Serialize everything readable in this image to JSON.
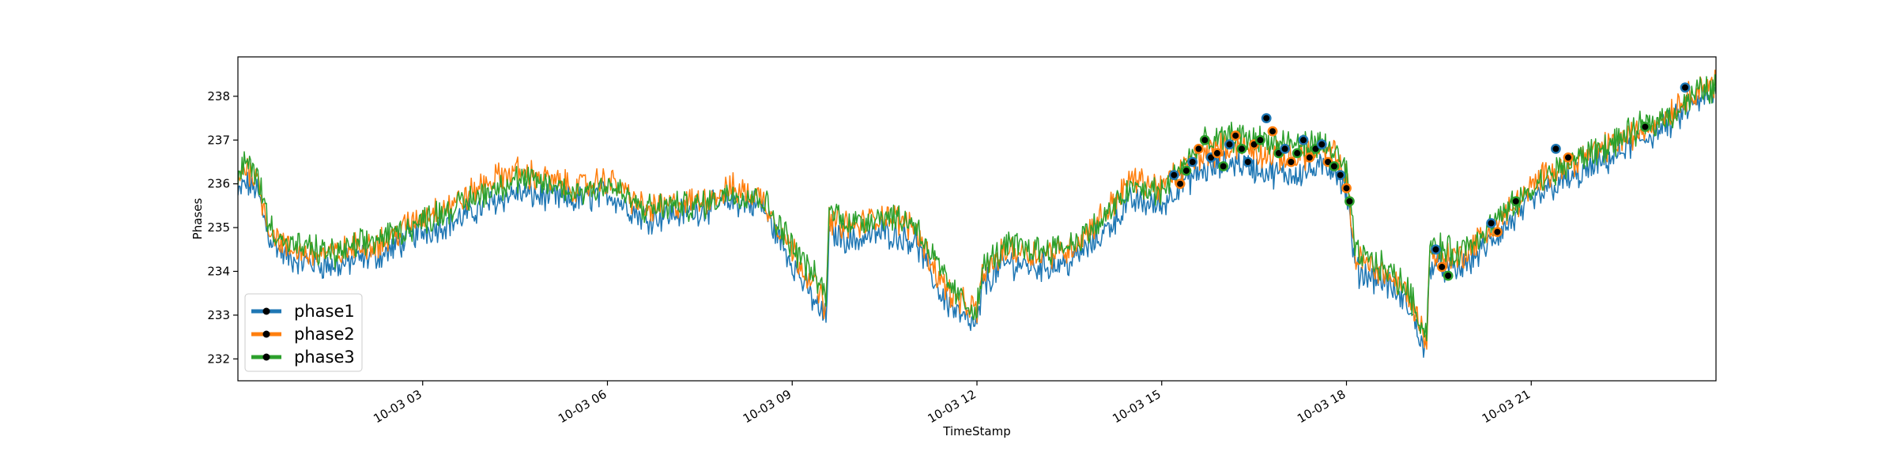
{
  "chart_data": {
    "type": "line",
    "title": "",
    "xlabel": "TimeStamp",
    "ylabel": "Phases",
    "x_range": [
      "2023-10-03 00:00",
      "2023-10-03 24:00"
    ],
    "ylim": [
      231.5,
      238.9
    ],
    "yticks": [
      232,
      233,
      234,
      235,
      236,
      237,
      238
    ],
    "xticks": [
      {
        "hour": 3,
        "label": "10-03 03"
      },
      {
        "hour": 6,
        "label": "10-03 06"
      },
      {
        "hour": 9,
        "label": "10-03 09"
      },
      {
        "hour": 12,
        "label": "10-03 12"
      },
      {
        "hour": 15,
        "label": "10-03 15"
      },
      {
        "hour": 18,
        "label": "10-03 18"
      },
      {
        "hour": 21,
        "label": "10-03 21"
      }
    ],
    "grid": false,
    "legend_position": "lower-left",
    "series": [
      {
        "name": "phase1",
        "color": "#1f77b4",
        "points": [
          [
            0,
            235.7
          ],
          [
            0.1,
            236.0
          ],
          [
            0.3,
            235.9
          ],
          [
            0.5,
            234.8
          ],
          [
            0.8,
            234.3
          ],
          [
            1.2,
            234.2
          ],
          [
            1.6,
            234.1
          ],
          [
            2.0,
            234.3
          ],
          [
            2.4,
            234.4
          ],
          [
            2.8,
            234.8
          ],
          [
            3.2,
            235.0
          ],
          [
            3.6,
            235.2
          ],
          [
            4.0,
            235.5
          ],
          [
            4.5,
            235.8
          ],
          [
            5.0,
            235.7
          ],
          [
            5.5,
            235.6
          ],
          [
            6.0,
            235.8
          ],
          [
            6.3,
            235.5
          ],
          [
            6.6,
            235.2
          ],
          [
            7.0,
            235.3
          ],
          [
            7.5,
            235.4
          ],
          [
            8.0,
            235.6
          ],
          [
            8.5,
            235.5
          ],
          [
            9.0,
            234.2
          ],
          [
            9.4,
            233.2
          ],
          [
            9.55,
            232.9
          ],
          [
            9.6,
            234.9
          ],
          [
            10.0,
            234.7
          ],
          [
            10.5,
            234.9
          ],
          [
            11.0,
            234.7
          ],
          [
            11.4,
            233.5
          ],
          [
            11.7,
            233.0
          ],
          [
            12.0,
            232.7
          ],
          [
            12.1,
            233.7
          ],
          [
            12.5,
            234.2
          ],
          [
            13.0,
            234.1
          ],
          [
            13.5,
            234.2
          ],
          [
            14.0,
            234.8
          ],
          [
            14.5,
            235.6
          ],
          [
            15.0,
            235.5
          ],
          [
            15.3,
            236.0
          ],
          [
            15.7,
            236.3
          ],
          [
            16.2,
            236.5
          ],
          [
            16.6,
            236.3
          ],
          [
            17.0,
            236.2
          ],
          [
            17.4,
            236.3
          ],
          [
            17.8,
            236.4
          ],
          [
            18.0,
            235.8
          ],
          [
            18.15,
            234.0
          ],
          [
            18.6,
            233.8
          ],
          [
            19.0,
            233.2
          ],
          [
            19.3,
            232.1
          ],
          [
            19.35,
            234.2
          ],
          [
            19.8,
            234.0
          ],
          [
            20.3,
            234.6
          ],
          [
            20.8,
            235.3
          ],
          [
            21.3,
            235.9
          ],
          [
            21.8,
            236.2
          ],
          [
            22.3,
            236.6
          ],
          [
            22.8,
            237.0
          ],
          [
            23.3,
            237.4
          ],
          [
            23.7,
            237.9
          ],
          [
            24.0,
            238.0
          ]
        ]
      },
      {
        "name": "phase2",
        "color": "#ff7f0e",
        "points": [
          [
            0,
            236.1
          ],
          [
            0.1,
            236.4
          ],
          [
            0.3,
            236.2
          ],
          [
            0.5,
            235.0
          ],
          [
            0.8,
            234.5
          ],
          [
            1.2,
            234.4
          ],
          [
            1.6,
            234.4
          ],
          [
            2.0,
            234.6
          ],
          [
            2.4,
            234.7
          ],
          [
            2.8,
            235.1
          ],
          [
            3.2,
            235.4
          ],
          [
            3.6,
            235.6
          ],
          [
            4.0,
            236.0
          ],
          [
            4.5,
            236.3
          ],
          [
            5.0,
            236.1
          ],
          [
            5.5,
            235.9
          ],
          [
            6.0,
            236.1
          ],
          [
            6.3,
            235.8
          ],
          [
            6.6,
            235.4
          ],
          [
            7.0,
            235.5
          ],
          [
            7.5,
            235.6
          ],
          [
            8.0,
            235.9
          ],
          [
            8.5,
            235.7
          ],
          [
            9.0,
            234.5
          ],
          [
            9.4,
            233.6
          ],
          [
            9.55,
            233.2
          ],
          [
            9.6,
            235.2
          ],
          [
            10.0,
            235.0
          ],
          [
            10.5,
            235.3
          ],
          [
            11.0,
            235.0
          ],
          [
            11.4,
            233.8
          ],
          [
            11.7,
            233.3
          ],
          [
            12.0,
            233.1
          ],
          [
            12.1,
            234.0
          ],
          [
            12.5,
            234.5
          ],
          [
            13.0,
            234.4
          ],
          [
            13.5,
            234.5
          ],
          [
            14.0,
            235.2
          ],
          [
            14.5,
            236.1
          ],
          [
            15.0,
            235.9
          ],
          [
            15.3,
            236.3
          ],
          [
            15.7,
            236.7
          ],
          [
            16.2,
            236.9
          ],
          [
            16.6,
            236.7
          ],
          [
            17.0,
            236.6
          ],
          [
            17.4,
            236.7
          ],
          [
            17.8,
            236.7
          ],
          [
            18.0,
            236.1
          ],
          [
            18.15,
            234.3
          ],
          [
            18.6,
            234.0
          ],
          [
            19.0,
            233.5
          ],
          [
            19.3,
            232.4
          ],
          [
            19.35,
            234.4
          ],
          [
            19.8,
            234.3
          ],
          [
            20.3,
            234.9
          ],
          [
            20.8,
            235.6
          ],
          [
            21.3,
            236.3
          ],
          [
            21.8,
            236.6
          ],
          [
            22.3,
            236.9
          ],
          [
            22.8,
            237.2
          ],
          [
            23.3,
            237.7
          ],
          [
            23.7,
            238.2
          ],
          [
            24.0,
            238.3
          ]
        ]
      },
      {
        "name": "phase3",
        "color": "#2ca02c",
        "points": [
          [
            0,
            236.0
          ],
          [
            0.1,
            236.5
          ],
          [
            0.3,
            236.3
          ],
          [
            0.5,
            235.1
          ],
          [
            0.8,
            234.6
          ],
          [
            1.2,
            234.5
          ],
          [
            1.6,
            234.4
          ],
          [
            2.0,
            234.6
          ],
          [
            2.4,
            234.8
          ],
          [
            2.8,
            235.0
          ],
          [
            3.2,
            235.3
          ],
          [
            3.6,
            235.5
          ],
          [
            4.0,
            235.8
          ],
          [
            4.5,
            236.1
          ],
          [
            5.0,
            236.0
          ],
          [
            5.5,
            235.8
          ],
          [
            6.0,
            236.0
          ],
          [
            6.3,
            235.7
          ],
          [
            6.6,
            235.4
          ],
          [
            7.0,
            235.5
          ],
          [
            7.5,
            235.5
          ],
          [
            8.0,
            235.8
          ],
          [
            8.5,
            235.7
          ],
          [
            9.0,
            234.6
          ],
          [
            9.4,
            233.8
          ],
          [
            9.55,
            233.4
          ],
          [
            9.6,
            235.4
          ],
          [
            10.0,
            235.1
          ],
          [
            10.5,
            235.3
          ],
          [
            11.0,
            235.1
          ],
          [
            11.4,
            234.0
          ],
          [
            11.7,
            233.4
          ],
          [
            12.0,
            233.1
          ],
          [
            12.1,
            234.1
          ],
          [
            12.5,
            234.6
          ],
          [
            13.0,
            234.5
          ],
          [
            13.5,
            234.6
          ],
          [
            14.0,
            235.1
          ],
          [
            14.5,
            235.9
          ],
          [
            15.0,
            235.8
          ],
          [
            15.3,
            236.4
          ],
          [
            15.7,
            236.9
          ],
          [
            16.2,
            237.1
          ],
          [
            16.6,
            237.0
          ],
          [
            17.0,
            236.9
          ],
          [
            17.4,
            236.9
          ],
          [
            17.8,
            236.8
          ],
          [
            18.0,
            236.2
          ],
          [
            18.15,
            234.4
          ],
          [
            18.6,
            234.1
          ],
          [
            19.0,
            233.6
          ],
          [
            19.3,
            232.5
          ],
          [
            19.35,
            234.6
          ],
          [
            19.8,
            234.4
          ],
          [
            20.3,
            235.0
          ],
          [
            20.8,
            235.6
          ],
          [
            21.3,
            236.2
          ],
          [
            21.8,
            236.6
          ],
          [
            22.3,
            236.9
          ],
          [
            22.8,
            237.3
          ],
          [
            23.3,
            237.6
          ],
          [
            23.7,
            238.1
          ],
          [
            24.0,
            238.2
          ]
        ]
      }
    ],
    "markers": {
      "description_note": "",
      "points": [
        [
          15.2,
          236.2
        ],
        [
          15.3,
          236.0
        ],
        [
          15.4,
          236.3
        ],
        [
          15.5,
          236.5
        ],
        [
          15.6,
          236.8
        ],
        [
          15.7,
          237.0
        ],
        [
          15.8,
          236.6
        ],
        [
          15.9,
          236.7
        ],
        [
          16.0,
          236.4
        ],
        [
          16.1,
          236.9
        ],
        [
          16.2,
          237.1
        ],
        [
          16.3,
          236.8
        ],
        [
          16.4,
          236.5
        ],
        [
          16.5,
          236.9
        ],
        [
          16.6,
          237.0
        ],
        [
          16.7,
          237.5
        ],
        [
          16.8,
          237.2
        ],
        [
          16.9,
          236.7
        ],
        [
          17.0,
          236.8
        ],
        [
          17.1,
          236.5
        ],
        [
          17.2,
          236.7
        ],
        [
          17.3,
          237.0
        ],
        [
          17.4,
          236.6
        ],
        [
          17.5,
          236.8
        ],
        [
          17.6,
          236.9
        ],
        [
          17.7,
          236.5
        ],
        [
          17.8,
          236.4
        ],
        [
          17.9,
          236.2
        ],
        [
          18.0,
          235.9
        ],
        [
          18.05,
          235.6
        ],
        [
          19.45,
          234.5
        ],
        [
          19.55,
          234.1
        ],
        [
          19.65,
          233.9
        ],
        [
          20.35,
          235.1
        ],
        [
          20.45,
          234.9
        ],
        [
          20.75,
          235.6
        ],
        [
          21.4,
          236.8
        ],
        [
          21.6,
          236.6
        ],
        [
          22.85,
          237.3
        ],
        [
          23.5,
          238.2
        ]
      ]
    }
  }
}
